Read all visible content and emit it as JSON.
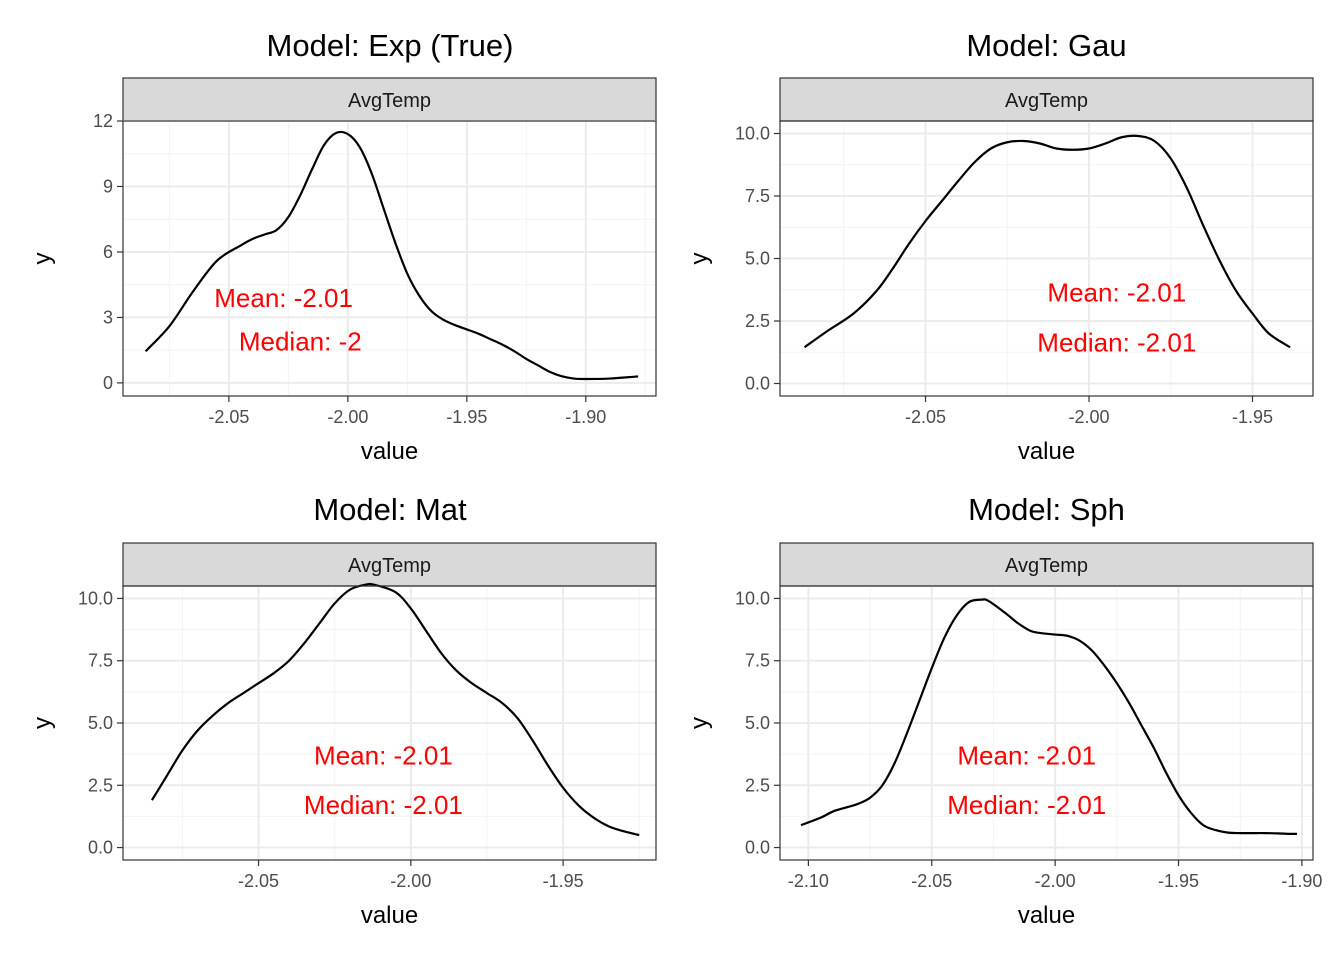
{
  "figure": {
    "background": "#ffffff"
  },
  "chart_data": [
    {
      "type": "line",
      "title": "Model: Exp (True)",
      "strip": "AvgTemp",
      "xlabel": "value",
      "ylabel": "y",
      "xlim": [
        -2.0945,
        -1.8705
      ],
      "ylim": [
        -0.6,
        12.0
      ],
      "xticks": [
        -2.05,
        -2.0,
        -1.95,
        -1.9
      ],
      "xtick_labels": [
        "-2.05",
        "-2.00",
        "-1.95",
        "-1.90"
      ],
      "yticks": [
        0,
        3,
        6,
        9,
        12
      ],
      "ytick_labels": [
        "0",
        "3",
        "6",
        "9",
        "12"
      ],
      "grid": true,
      "line_color": "#000000",
      "annotations": [
        {
          "text": "Mean: -2.01",
          "x": -2.027,
          "y": 3.9,
          "color": "#ff0000"
        },
        {
          "text": "Median: -2",
          "x": -2.02,
          "y": 1.9,
          "color": "#ff0000"
        }
      ],
      "series": [
        {
          "x": [
            -2.085,
            -2.075,
            -2.065,
            -2.055,
            -2.045,
            -2.04,
            -2.035,
            -2.03,
            -2.025,
            -2.02,
            -2.015,
            -2.01,
            -2.005,
            -2.0,
            -1.995,
            -1.99,
            -1.985,
            -1.98,
            -1.975,
            -1.97,
            -1.965,
            -1.96,
            -1.955,
            -1.95,
            -1.945,
            -1.94,
            -1.935,
            -1.93,
            -1.925,
            -1.92,
            -1.915,
            -1.91,
            -1.905,
            -1.9,
            -1.89,
            -1.88,
            -1.878
          ],
          "y": [
            1.45,
            2.6,
            4.2,
            5.6,
            6.3,
            6.6,
            6.8,
            7.0,
            7.6,
            8.6,
            9.8,
            10.9,
            11.45,
            11.4,
            10.8,
            9.6,
            8.0,
            6.4,
            5.0,
            4.0,
            3.3,
            2.9,
            2.65,
            2.45,
            2.25,
            2.0,
            1.75,
            1.45,
            1.1,
            0.8,
            0.5,
            0.3,
            0.2,
            0.18,
            0.2,
            0.28,
            0.3
          ]
        }
      ]
    },
    {
      "type": "line",
      "title": "Model: Gau",
      "strip": "AvgTemp",
      "xlabel": "value",
      "ylabel": "y",
      "xlim": [
        -2.0945,
        -1.9315
      ],
      "ylim": [
        -0.5,
        10.5
      ],
      "xticks": [
        -2.05,
        -2.0,
        -1.95
      ],
      "xtick_labels": [
        "-2.05",
        "-2.00",
        "-1.95"
      ],
      "yticks": [
        0.0,
        2.5,
        5.0,
        7.5,
        10.0
      ],
      "ytick_labels": [
        "0.0",
        "2.5",
        "5.0",
        "7.5",
        "10.0"
      ],
      "grid": true,
      "line_color": "#000000",
      "annotations": [
        {
          "text": "Mean: -2.01",
          "x": -1.9915,
          "y": 3.65,
          "color": "#ff0000"
        },
        {
          "text": "Median: -2.01",
          "x": -1.9915,
          "y": 1.65,
          "color": "#ff0000"
        }
      ],
      "series": [
        {
          "x": [
            -2.087,
            -2.08,
            -2.072,
            -2.065,
            -2.06,
            -2.055,
            -2.05,
            -2.045,
            -2.04,
            -2.035,
            -2.03,
            -2.025,
            -2.02,
            -2.015,
            -2.01,
            -2.005,
            -2.0,
            -1.995,
            -1.99,
            -1.985,
            -1.98,
            -1.975,
            -1.97,
            -1.965,
            -1.96,
            -1.955,
            -1.95,
            -1.945,
            -1.9385
          ],
          "y": [
            1.45,
            2.1,
            2.8,
            3.7,
            4.6,
            5.6,
            6.5,
            7.3,
            8.1,
            8.85,
            9.4,
            9.65,
            9.7,
            9.6,
            9.4,
            9.35,
            9.4,
            9.6,
            9.85,
            9.9,
            9.7,
            9.0,
            7.8,
            6.3,
            4.9,
            3.7,
            2.8,
            2.0,
            1.45
          ]
        }
      ]
    },
    {
      "type": "line",
      "title": "Model: Mat",
      "strip": "AvgTemp",
      "xlabel": "value",
      "ylabel": "y",
      "xlim": [
        -2.0945,
        -1.9195
      ],
      "ylim": [
        -0.5,
        10.5
      ],
      "xticks": [
        -2.05,
        -2.0,
        -1.95
      ],
      "xtick_labels": [
        "-2.05",
        "-2.00",
        "-1.95"
      ],
      "yticks": [
        0.0,
        2.5,
        5.0,
        7.5,
        10.0
      ],
      "ytick_labels": [
        "0.0",
        "2.5",
        "5.0",
        "7.5",
        "10.0"
      ],
      "grid": true,
      "line_color": "#000000",
      "annotations": [
        {
          "text": "Mean: -2.01",
          "x": -2.009,
          "y": 3.7,
          "color": "#ff0000"
        },
        {
          "text": "Median: -2.01",
          "x": -2.009,
          "y": 1.7,
          "color": "#ff0000"
        }
      ],
      "series": [
        {
          "x": [
            -2.085,
            -2.08,
            -2.075,
            -2.07,
            -2.065,
            -2.06,
            -2.055,
            -2.05,
            -2.045,
            -2.04,
            -2.035,
            -2.03,
            -2.025,
            -2.02,
            -2.015,
            -2.012,
            -2.005,
            -2.0,
            -1.995,
            -1.99,
            -1.985,
            -1.98,
            -1.975,
            -1.97,
            -1.965,
            -1.96,
            -1.955,
            -1.95,
            -1.945,
            -1.94,
            -1.935,
            -1.93,
            -1.925
          ],
          "y": [
            1.9,
            2.9,
            3.9,
            4.7,
            5.3,
            5.8,
            6.2,
            6.6,
            7.0,
            7.5,
            8.2,
            9.0,
            9.8,
            10.35,
            10.55,
            10.55,
            10.25,
            9.6,
            8.7,
            7.8,
            7.1,
            6.6,
            6.2,
            5.8,
            5.2,
            4.3,
            3.3,
            2.4,
            1.7,
            1.2,
            0.85,
            0.65,
            0.5
          ]
        }
      ]
    },
    {
      "type": "line",
      "title": "Model: Sph",
      "strip": "AvgTemp",
      "xlabel": "value",
      "ylabel": "y",
      "xlim": [
        -2.1115,
        -1.8955
      ],
      "ylim": [
        -0.5,
        10.5
      ],
      "xticks": [
        -2.1,
        -2.05,
        -2.0,
        -1.95,
        -1.9
      ],
      "xtick_labels": [
        "-2.10",
        "-2.05",
        "-2.00",
        "-1.95",
        "-1.90"
      ],
      "yticks": [
        0.0,
        2.5,
        5.0,
        7.5,
        10.0
      ],
      "ytick_labels": [
        "0.0",
        "2.5",
        "5.0",
        "7.5",
        "10.0"
      ],
      "grid": true,
      "line_color": "#000000",
      "annotations": [
        {
          "text": "Mean: -2.01",
          "x": -2.0115,
          "y": 3.7,
          "color": "#ff0000"
        },
        {
          "text": "Median: -2.01",
          "x": -2.0115,
          "y": 1.7,
          "color": "#ff0000"
        }
      ],
      "series": [
        {
          "x": [
            -2.103,
            -2.095,
            -2.09,
            -2.085,
            -2.08,
            -2.075,
            -2.07,
            -2.065,
            -2.06,
            -2.055,
            -2.05,
            -2.045,
            -2.04,
            -2.035,
            -2.03,
            -2.027,
            -2.02,
            -2.015,
            -2.01,
            -2.005,
            -2.0,
            -1.995,
            -1.99,
            -1.985,
            -1.98,
            -1.975,
            -1.97,
            -1.965,
            -1.96,
            -1.955,
            -1.95,
            -1.945,
            -1.94,
            -1.935,
            -1.93,
            -1.925,
            -1.92,
            -1.915,
            -1.91,
            -1.905,
            -1.902
          ],
          "y": [
            0.9,
            1.2,
            1.45,
            1.6,
            1.75,
            2.0,
            2.5,
            3.4,
            4.6,
            5.9,
            7.2,
            8.4,
            9.3,
            9.85,
            9.95,
            9.9,
            9.4,
            9.0,
            8.7,
            8.6,
            8.55,
            8.5,
            8.3,
            7.9,
            7.3,
            6.6,
            5.8,
            4.9,
            4.0,
            3.0,
            2.1,
            1.4,
            0.9,
            0.7,
            0.6,
            0.58,
            0.58,
            0.58,
            0.57,
            0.55,
            0.55
          ]
        }
      ]
    }
  ]
}
